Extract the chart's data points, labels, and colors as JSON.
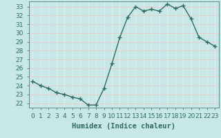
{
  "x": [
    0,
    1,
    2,
    3,
    4,
    5,
    6,
    7,
    8,
    9,
    10,
    11,
    12,
    13,
    14,
    15,
    16,
    17,
    18,
    19,
    20,
    21,
    22,
    23
  ],
  "y": [
    24.5,
    24.0,
    23.7,
    23.2,
    23.0,
    22.7,
    22.5,
    21.8,
    21.8,
    23.7,
    26.5,
    29.5,
    31.8,
    33.0,
    32.5,
    32.7,
    32.5,
    33.3,
    32.8,
    33.1,
    31.6,
    29.5,
    29.0,
    28.5
  ],
  "line_color": "#2e6b5e",
  "marker": "D",
  "marker_size": 2.0,
  "bg_color": "#c8e8e8",
  "grid_color_main": "#f0c8c8",
  "grid_color_sub": "#e8f0f0",
  "xlabel": "Humidex (Indice chaleur)",
  "ylim": [
    21.5,
    33.6
  ],
  "xlim": [
    -0.5,
    23.5
  ],
  "yticks": [
    22,
    23,
    24,
    25,
    26,
    27,
    28,
    29,
    30,
    31,
    32,
    33
  ],
  "xticks": [
    0,
    1,
    2,
    3,
    4,
    5,
    6,
    7,
    8,
    9,
    10,
    11,
    12,
    13,
    14,
    15,
    16,
    17,
    18,
    19,
    20,
    21,
    22,
    23
  ],
  "xlabel_fontsize": 7.5,
  "tick_fontsize": 6.5,
  "linewidth": 1.0
}
